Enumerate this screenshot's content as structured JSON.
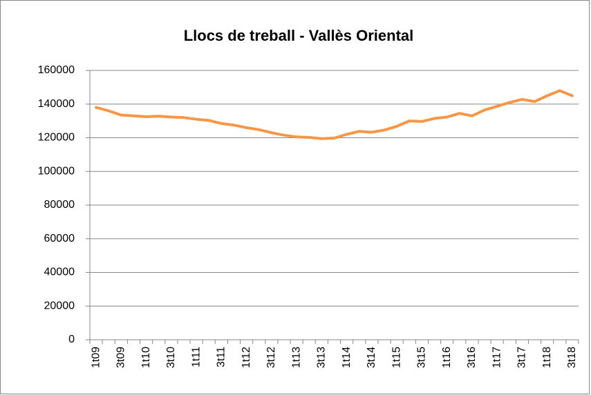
{
  "chart_data": {
    "type": "line",
    "title": "Llocs de treball - Vallès Oriental",
    "categories": [
      "1t09",
      null,
      "3t09",
      null,
      "1t10",
      null,
      "3t10",
      null,
      "1t11",
      null,
      "3t11",
      null,
      "1t12",
      null,
      "3t12",
      null,
      "1t13",
      null,
      "3t13",
      null,
      "1t14",
      null,
      "3t14",
      null,
      "1t15",
      null,
      "3t15",
      null,
      "1t16",
      null,
      "3t16",
      null,
      "1t17",
      null,
      "3t17",
      null,
      "1t18",
      null,
      "3t18"
    ],
    "values": [
      138000,
      136000,
      133500,
      133000,
      132500,
      132800,
      132300,
      132000,
      131000,
      130300,
      128500,
      127500,
      126000,
      124800,
      123000,
      121500,
      120500,
      120200,
      119500,
      119800,
      122000,
      123800,
      123300,
      124600,
      126800,
      130000,
      129700,
      131500,
      132300,
      134500,
      133000,
      136500,
      138700,
      141000,
      142800,
      141500,
      145000,
      148000,
      145000
    ],
    "color": "#f79646",
    "ylim": [
      0,
      160000
    ],
    "yticks": [
      0,
      20000,
      40000,
      60000,
      80000,
      100000,
      120000,
      140000,
      160000
    ],
    "grid": true
  }
}
